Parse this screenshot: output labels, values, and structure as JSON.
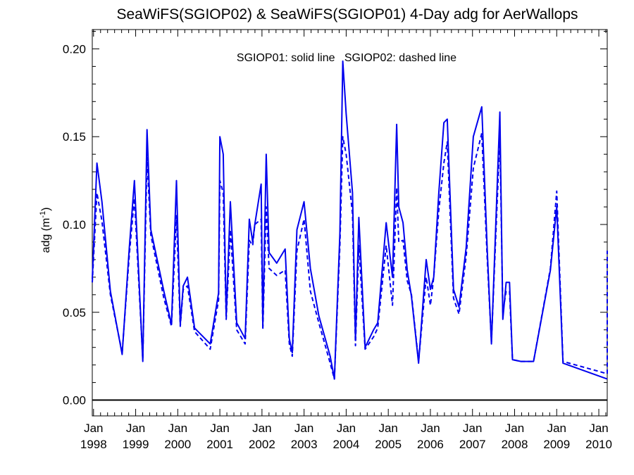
{
  "chart_data": {
    "type": "line",
    "title": "SeaWiFS(SGIOP02) & SeaWiFS(SGIOP01) 4-Day adg for AerWallops",
    "ylabel_main": "adg (m",
    "ylabel_exp": "-1",
    "ylabel_close": ")",
    "annotation": "SGIOP01: solid line   SGIOP02: dashed line",
    "xlim": [
      1997.97,
      2010.2
    ],
    "ylim": [
      -0.009,
      0.211
    ],
    "y_ticks": [
      "0.00",
      "0.05",
      "0.10",
      "0.15",
      "0.20"
    ],
    "y_tick_values": [
      0,
      0.05,
      0.1,
      0.15,
      0.2
    ],
    "x_ticks": [
      {
        "value": 1998.0,
        "month": "Jan",
        "year": "1998"
      },
      {
        "value": 1999.0,
        "month": "Jan",
        "year": "1999"
      },
      {
        "value": 2000.0,
        "month": "Jan",
        "year": "2000"
      },
      {
        "value": 2001.0,
        "month": "Jan",
        "year": "2001"
      },
      {
        "value": 2002.0,
        "month": "Jan",
        "year": "2002"
      },
      {
        "value": 2003.0,
        "month": "Jan",
        "year": "2003"
      },
      {
        "value": 2004.0,
        "month": "Jan",
        "year": "2004"
      },
      {
        "value": 2005.0,
        "month": "Jan",
        "year": "2005"
      },
      {
        "value": 2006.0,
        "month": "Jan",
        "year": "2006"
      },
      {
        "value": 2007.0,
        "month": "Jan",
        "year": "2007"
      },
      {
        "value": 2008.0,
        "month": "Jan",
        "year": "2008"
      },
      {
        "value": 2009.0,
        "month": "Jan",
        "year": "2009"
      },
      {
        "value": 2010.0,
        "month": "Jan",
        "year": "2010"
      }
    ],
    "zero_line": 0,
    "line_color": "#0000ee",
    "series": [
      {
        "style": "solid",
        "points": [
          [
            1997.97,
            0.069
          ],
          [
            1998.08,
            0.135
          ],
          [
            1998.2,
            0.113
          ],
          [
            1998.4,
            0.062
          ],
          [
            1998.68,
            0.026
          ],
          [
            1998.85,
            0.087
          ],
          [
            1998.97,
            0.125
          ],
          [
            1999.17,
            0.022
          ],
          [
            1999.27,
            0.154
          ],
          [
            1999.36,
            0.097
          ],
          [
            1999.67,
            0.062
          ],
          [
            1999.85,
            0.043
          ],
          [
            1999.97,
            0.125
          ],
          [
            2000.06,
            0.043
          ],
          [
            2000.13,
            0.065
          ],
          [
            2000.23,
            0.07
          ],
          [
            2000.4,
            0.041
          ],
          [
            2000.77,
            0.032
          ],
          [
            2000.97,
            0.061
          ],
          [
            2001.0,
            0.15
          ],
          [
            2001.08,
            0.14
          ],
          [
            2001.15,
            0.048
          ],
          [
            2001.25,
            0.113
          ],
          [
            2001.4,
            0.044
          ],
          [
            2001.6,
            0.035
          ],
          [
            2001.7,
            0.103
          ],
          [
            2001.78,
            0.09
          ],
          [
            2001.83,
            0.1
          ],
          [
            2001.98,
            0.123
          ],
          [
            2002.02,
            0.042
          ],
          [
            2002.1,
            0.14
          ],
          [
            2002.17,
            0.084
          ],
          [
            2002.35,
            0.078
          ],
          [
            2002.55,
            0.086
          ],
          [
            2002.65,
            0.035
          ],
          [
            2002.72,
            0.027
          ],
          [
            2002.83,
            0.097
          ],
          [
            2003.0,
            0.113
          ],
          [
            2003.15,
            0.075
          ],
          [
            2003.35,
            0.048
          ],
          [
            2003.62,
            0.025
          ],
          [
            2003.72,
            0.012
          ],
          [
            2003.85,
            0.095
          ],
          [
            2003.92,
            0.193
          ],
          [
            2004.0,
            0.163
          ],
          [
            2004.15,
            0.118
          ],
          [
            2004.22,
            0.034
          ],
          [
            2004.3,
            0.104
          ],
          [
            2004.45,
            0.03
          ],
          [
            2004.65,
            0.04
          ],
          [
            2004.75,
            0.044
          ],
          [
            2004.95,
            0.101
          ],
          [
            2005.1,
            0.07
          ],
          [
            2005.2,
            0.157
          ],
          [
            2005.25,
            0.11
          ],
          [
            2005.35,
            0.101
          ],
          [
            2005.45,
            0.074
          ],
          [
            2005.55,
            0.059
          ],
          [
            2005.72,
            0.021
          ],
          [
            2005.9,
            0.08
          ],
          [
            2006.0,
            0.063
          ],
          [
            2006.08,
            0.07
          ],
          [
            2006.2,
            0.118
          ],
          [
            2006.32,
            0.158
          ],
          [
            2006.4,
            0.16
          ],
          [
            2006.55,
            0.063
          ],
          [
            2006.68,
            0.053
          ],
          [
            2006.85,
            0.087
          ],
          [
            2007.02,
            0.15
          ],
          [
            2007.22,
            0.167
          ],
          [
            2007.35,
            0.085
          ],
          [
            2007.45,
            0.032
          ],
          [
            2007.65,
            0.164
          ],
          [
            2007.72,
            0.046
          ],
          [
            2007.8,
            0.067
          ],
          [
            2007.88,
            0.067
          ],
          [
            2007.95,
            0.023
          ],
          [
            2008.15,
            0.022
          ],
          [
            2008.45,
            0.022
          ],
          [
            2008.85,
            0.074
          ],
          [
            2009.0,
            0.11
          ],
          [
            2009.15,
            0.021
          ],
          [
            2010.2,
            0.012
          ]
        ]
      },
      {
        "style": "dashed",
        "points": [
          [
            1997.97,
            0.067
          ],
          [
            1998.08,
            0.118
          ],
          [
            1998.2,
            0.102
          ],
          [
            1998.4,
            0.06
          ],
          [
            1998.68,
            0.027
          ],
          [
            1998.85,
            0.083
          ],
          [
            1998.97,
            0.115
          ],
          [
            1999.17,
            0.023
          ],
          [
            1999.27,
            0.138
          ],
          [
            1999.36,
            0.094
          ],
          [
            1999.67,
            0.058
          ],
          [
            1999.85,
            0.042
          ],
          [
            1999.97,
            0.105
          ],
          [
            2000.06,
            0.042
          ],
          [
            2000.13,
            0.063
          ],
          [
            2000.23,
            0.065
          ],
          [
            2000.4,
            0.039
          ],
          [
            2000.77,
            0.029
          ],
          [
            2000.97,
            0.057
          ],
          [
            2001.0,
            0.125
          ],
          [
            2001.08,
            0.118
          ],
          [
            2001.15,
            0.046
          ],
          [
            2001.25,
            0.097
          ],
          [
            2001.4,
            0.04
          ],
          [
            2001.6,
            0.032
          ],
          [
            2001.7,
            0.091
          ],
          [
            2001.78,
            0.088
          ],
          [
            2001.83,
            0.1
          ],
          [
            2001.98,
            0.103
          ],
          [
            2002.02,
            0.04
          ],
          [
            2002.1,
            0.11
          ],
          [
            2002.17,
            0.075
          ],
          [
            2002.35,
            0.071
          ],
          [
            2002.55,
            0.074
          ],
          [
            2002.65,
            0.032
          ],
          [
            2002.72,
            0.025
          ],
          [
            2002.83,
            0.085
          ],
          [
            2003.0,
            0.103
          ],
          [
            2003.15,
            0.062
          ],
          [
            2003.35,
            0.044
          ],
          [
            2003.62,
            0.021
          ],
          [
            2003.72,
            0.012
          ],
          [
            2003.85,
            0.088
          ],
          [
            2003.92,
            0.15
          ],
          [
            2004.0,
            0.14
          ],
          [
            2004.15,
            0.106
          ],
          [
            2004.22,
            0.031
          ],
          [
            2004.3,
            0.088
          ],
          [
            2004.45,
            0.029
          ],
          [
            2004.65,
            0.036
          ],
          [
            2004.75,
            0.041
          ],
          [
            2004.95,
            0.088
          ],
          [
            2005.1,
            0.054
          ],
          [
            2005.2,
            0.121
          ],
          [
            2005.25,
            0.09
          ],
          [
            2005.35,
            0.091
          ],
          [
            2005.45,
            0.068
          ],
          [
            2005.55,
            0.06
          ],
          [
            2005.72,
            0.022
          ],
          [
            2005.9,
            0.07
          ],
          [
            2006.0,
            0.054
          ],
          [
            2006.08,
            0.07
          ],
          [
            2006.2,
            0.108
          ],
          [
            2006.32,
            0.135
          ],
          [
            2006.4,
            0.147
          ],
          [
            2006.55,
            0.058
          ],
          [
            2006.68,
            0.049
          ],
          [
            2006.85,
            0.082
          ],
          [
            2007.02,
            0.132
          ],
          [
            2007.22,
            0.152
          ],
          [
            2007.35,
            0.08
          ],
          [
            2007.45,
            0.033
          ],
          [
            2007.65,
            0.15
          ],
          [
            2007.72,
            0.05
          ],
          [
            2007.8,
            0.062
          ],
          [
            2007.88,
            0.062
          ],
          [
            2007.95,
            0.023
          ],
          [
            2008.15,
            0.022
          ],
          [
            2008.45,
            0.022
          ],
          [
            2008.85,
            0.075
          ],
          [
            2009.0,
            0.119
          ],
          [
            2009.15,
            0.022
          ],
          [
            2010.2,
            0.015
          ],
          [
            2010.2,
            0.085
          ]
        ]
      }
    ]
  }
}
